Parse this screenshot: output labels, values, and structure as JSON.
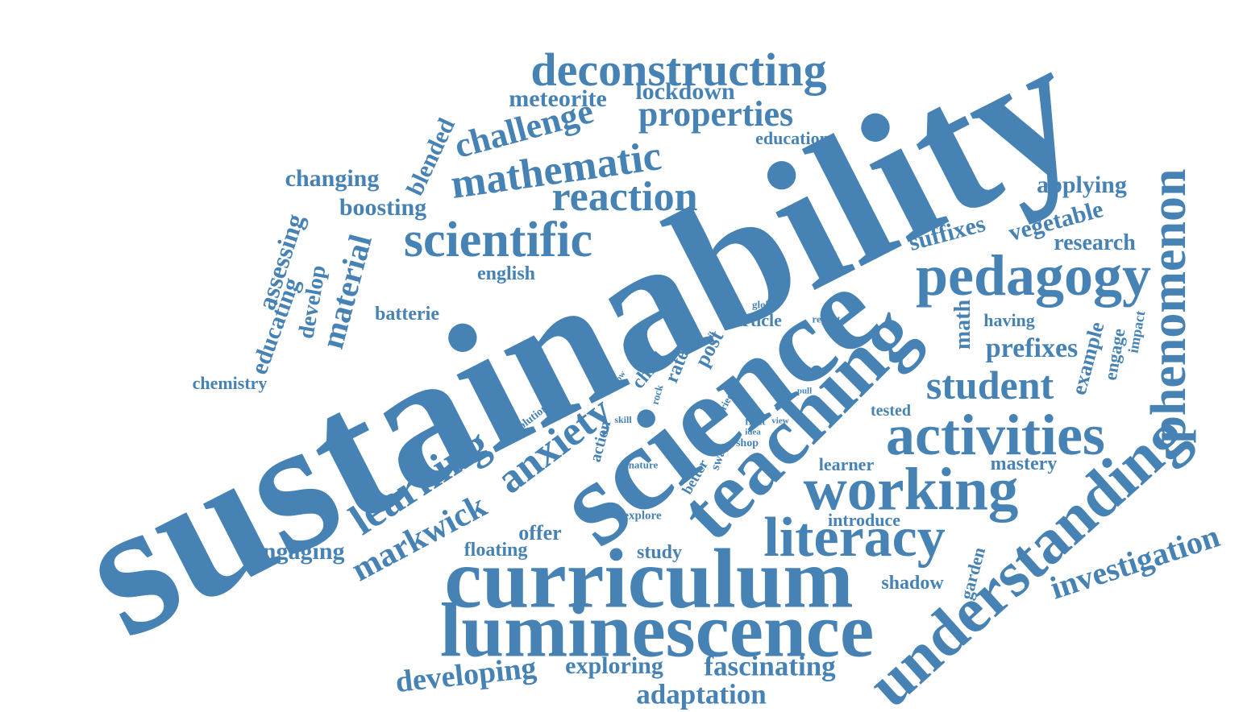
{
  "color": "#4682b4",
  "words": {
    "sustainability": "sustainability",
    "science": "science",
    "teaching": "teaching",
    "curriculum": "curriculum",
    "luminescence": "luminescence",
    "understanding": "understanding",
    "working": "working",
    "activities": "activities",
    "literacy": "literacy",
    "pedagogy": "pedagogy",
    "phenomenon": "phenomenon",
    "scientific": "scientific",
    "deconstructing": "deconstructing",
    "mathematic": "mathematic",
    "reaction": "reaction",
    "learning": "learning",
    "anxiety": "anxiety",
    "student": "student",
    "properties": "properties",
    "challenge": "challenge",
    "investigation": "investigation",
    "markwick": "markwick",
    "developing": "developing",
    "fascinating": "fascinating",
    "adaptation": "adaptation",
    "exploring": "exploring",
    "material": "material",
    "prefixes": "prefixes",
    "lockdown": "lockdown",
    "meteorite": "meteorite",
    "changing": "changing",
    "boosting": "boosting",
    "blended": "blended",
    "assessing": "assessing",
    "educating": "educating",
    "develop": "develop",
    "english": "english",
    "batterie": "batterie",
    "chemistry": "chemistry",
    "engaging": "engaging",
    "offer": "offer",
    "floating": "floating",
    "study": "study",
    "education": "education",
    "applying": "applying",
    "suffixes": "suffixes",
    "vegetable": "vegetable",
    "research": "research",
    "math": "math",
    "having": "having",
    "global": "global",
    "report": "report",
    "article": "article",
    "post": "post",
    "rate": "rate",
    "child": "child",
    "part": "part",
    "soil": "soil",
    "glow": "glow",
    "rock": "rock",
    "tried": "tried",
    "pull": "pull",
    "tested": "tested",
    "example": "example",
    "engage": "engage",
    "impact": "impact",
    "mastery": "mastery",
    "learner": "learner",
    "introduce": "introduce",
    "garden": "garden",
    "shadow": "shadow",
    "solution": "solution",
    "skill": "skill",
    "action": "action",
    "nature": "nature",
    "fruit": "fruit",
    "view": "view",
    "idea": "idea",
    "shop": "shop",
    "swap": "swap",
    "better": "better",
    "explore": "explore"
  }
}
